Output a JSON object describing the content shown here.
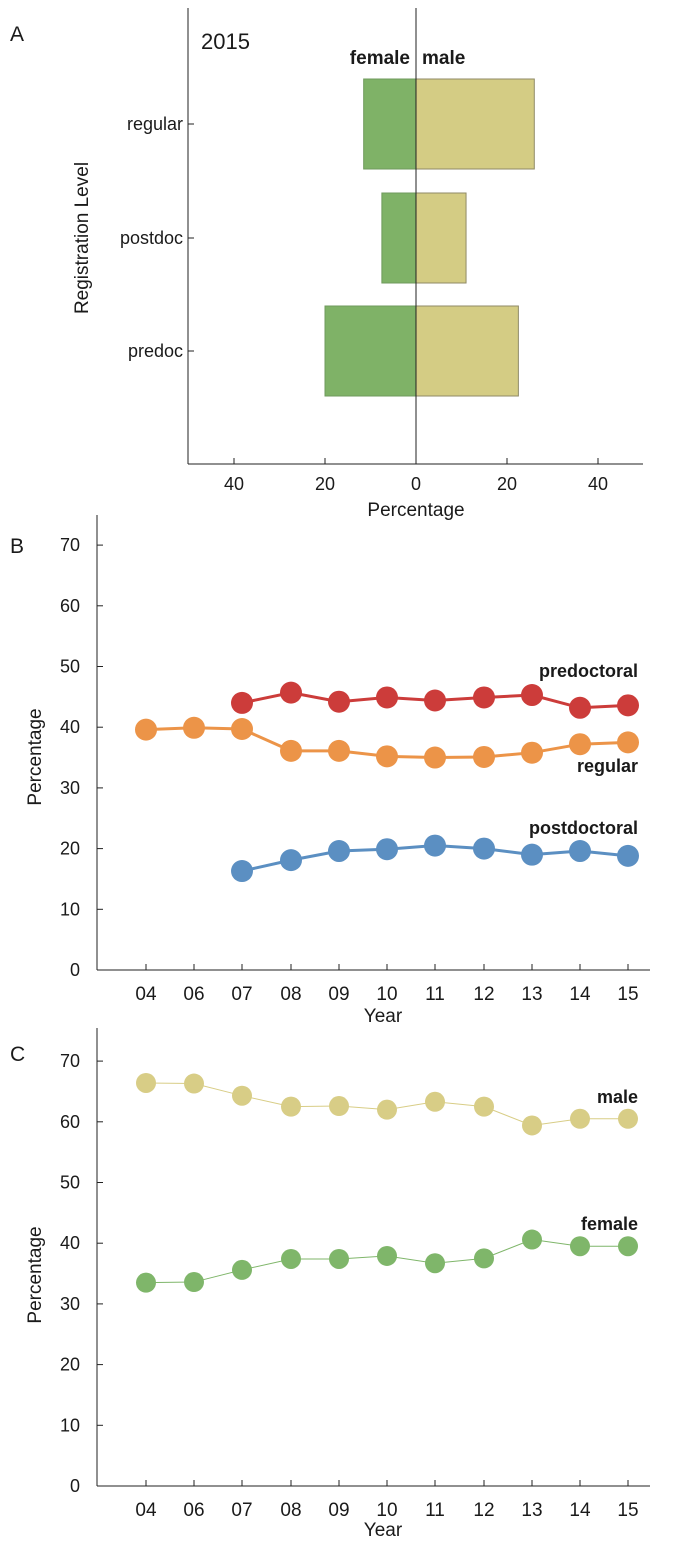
{
  "panels": [
    {
      "letter": "A"
    },
    {
      "letter": "B"
    },
    {
      "letter": "C"
    }
  ],
  "chart_data": [
    {
      "type": "bar",
      "orientation": "horizontal-diverging",
      "annotation": "2015",
      "categories": [
        "regular",
        "postdoc",
        "predoc"
      ],
      "series": [
        {
          "name": "female",
          "values": [
            11.5,
            7.5,
            20
          ],
          "color": "#7fb267"
        },
        {
          "name": "male",
          "values": [
            26,
            11,
            22.5
          ],
          "color": "#d4cc84"
        }
      ],
      "xlabel": "Percentage",
      "ylabel": "Registration Level",
      "xticks": [
        -40,
        -20,
        0,
        20,
        40
      ],
      "xtick_labels": [
        "40",
        "20",
        "0",
        "20",
        "40"
      ],
      "xlim": [
        -50,
        50
      ]
    },
    {
      "type": "line",
      "categories": [
        "04",
        "06",
        "07",
        "08",
        "09",
        "10",
        "11",
        "12",
        "13",
        "14",
        "15"
      ],
      "series": [
        {
          "name": "predoctoral",
          "color": "#cc3c3a",
          "values": [
            null,
            null,
            44,
            45.7,
            44.2,
            44.9,
            44.4,
            44.9,
            45.3,
            43.2,
            43.6
          ]
        },
        {
          "name": "regular",
          "color": "#ec9448",
          "values": [
            39.6,
            39.9,
            39.7,
            36.1,
            36.1,
            35.2,
            35.0,
            35.1,
            35.8,
            37.2,
            37.5
          ]
        },
        {
          "name": "postdoctoral",
          "color": "#5b8fc2",
          "values": [
            null,
            null,
            16.3,
            18.1,
            19.6,
            19.9,
            20.5,
            20.0,
            19.0,
            19.6,
            18.8
          ]
        }
      ],
      "xlabel": "Year",
      "ylabel": "Percentage",
      "yticks": [
        0,
        10,
        20,
        30,
        40,
        50,
        60,
        70
      ],
      "ylim": [
        0,
        75
      ]
    },
    {
      "type": "line",
      "categories": [
        "04",
        "06",
        "07",
        "08",
        "09",
        "10",
        "11",
        "12",
        "13",
        "14",
        "15"
      ],
      "series": [
        {
          "name": "male",
          "color": "#d8cd86",
          "values": [
            66.4,
            66.3,
            64.3,
            62.5,
            62.6,
            62.0,
            63.3,
            62.5,
            59.4,
            60.5,
            60.5
          ]
        },
        {
          "name": "female",
          "color": "#7fb66a",
          "values": [
            33.5,
            33.6,
            35.6,
            37.4,
            37.4,
            37.9,
            36.7,
            37.5,
            40.6,
            39.5,
            39.5
          ]
        }
      ],
      "xlabel": "Year",
      "ylabel": "Percentage",
      "yticks": [
        0,
        10,
        20,
        30,
        40,
        50,
        60,
        70
      ],
      "ylim": [
        0,
        75
      ]
    }
  ]
}
